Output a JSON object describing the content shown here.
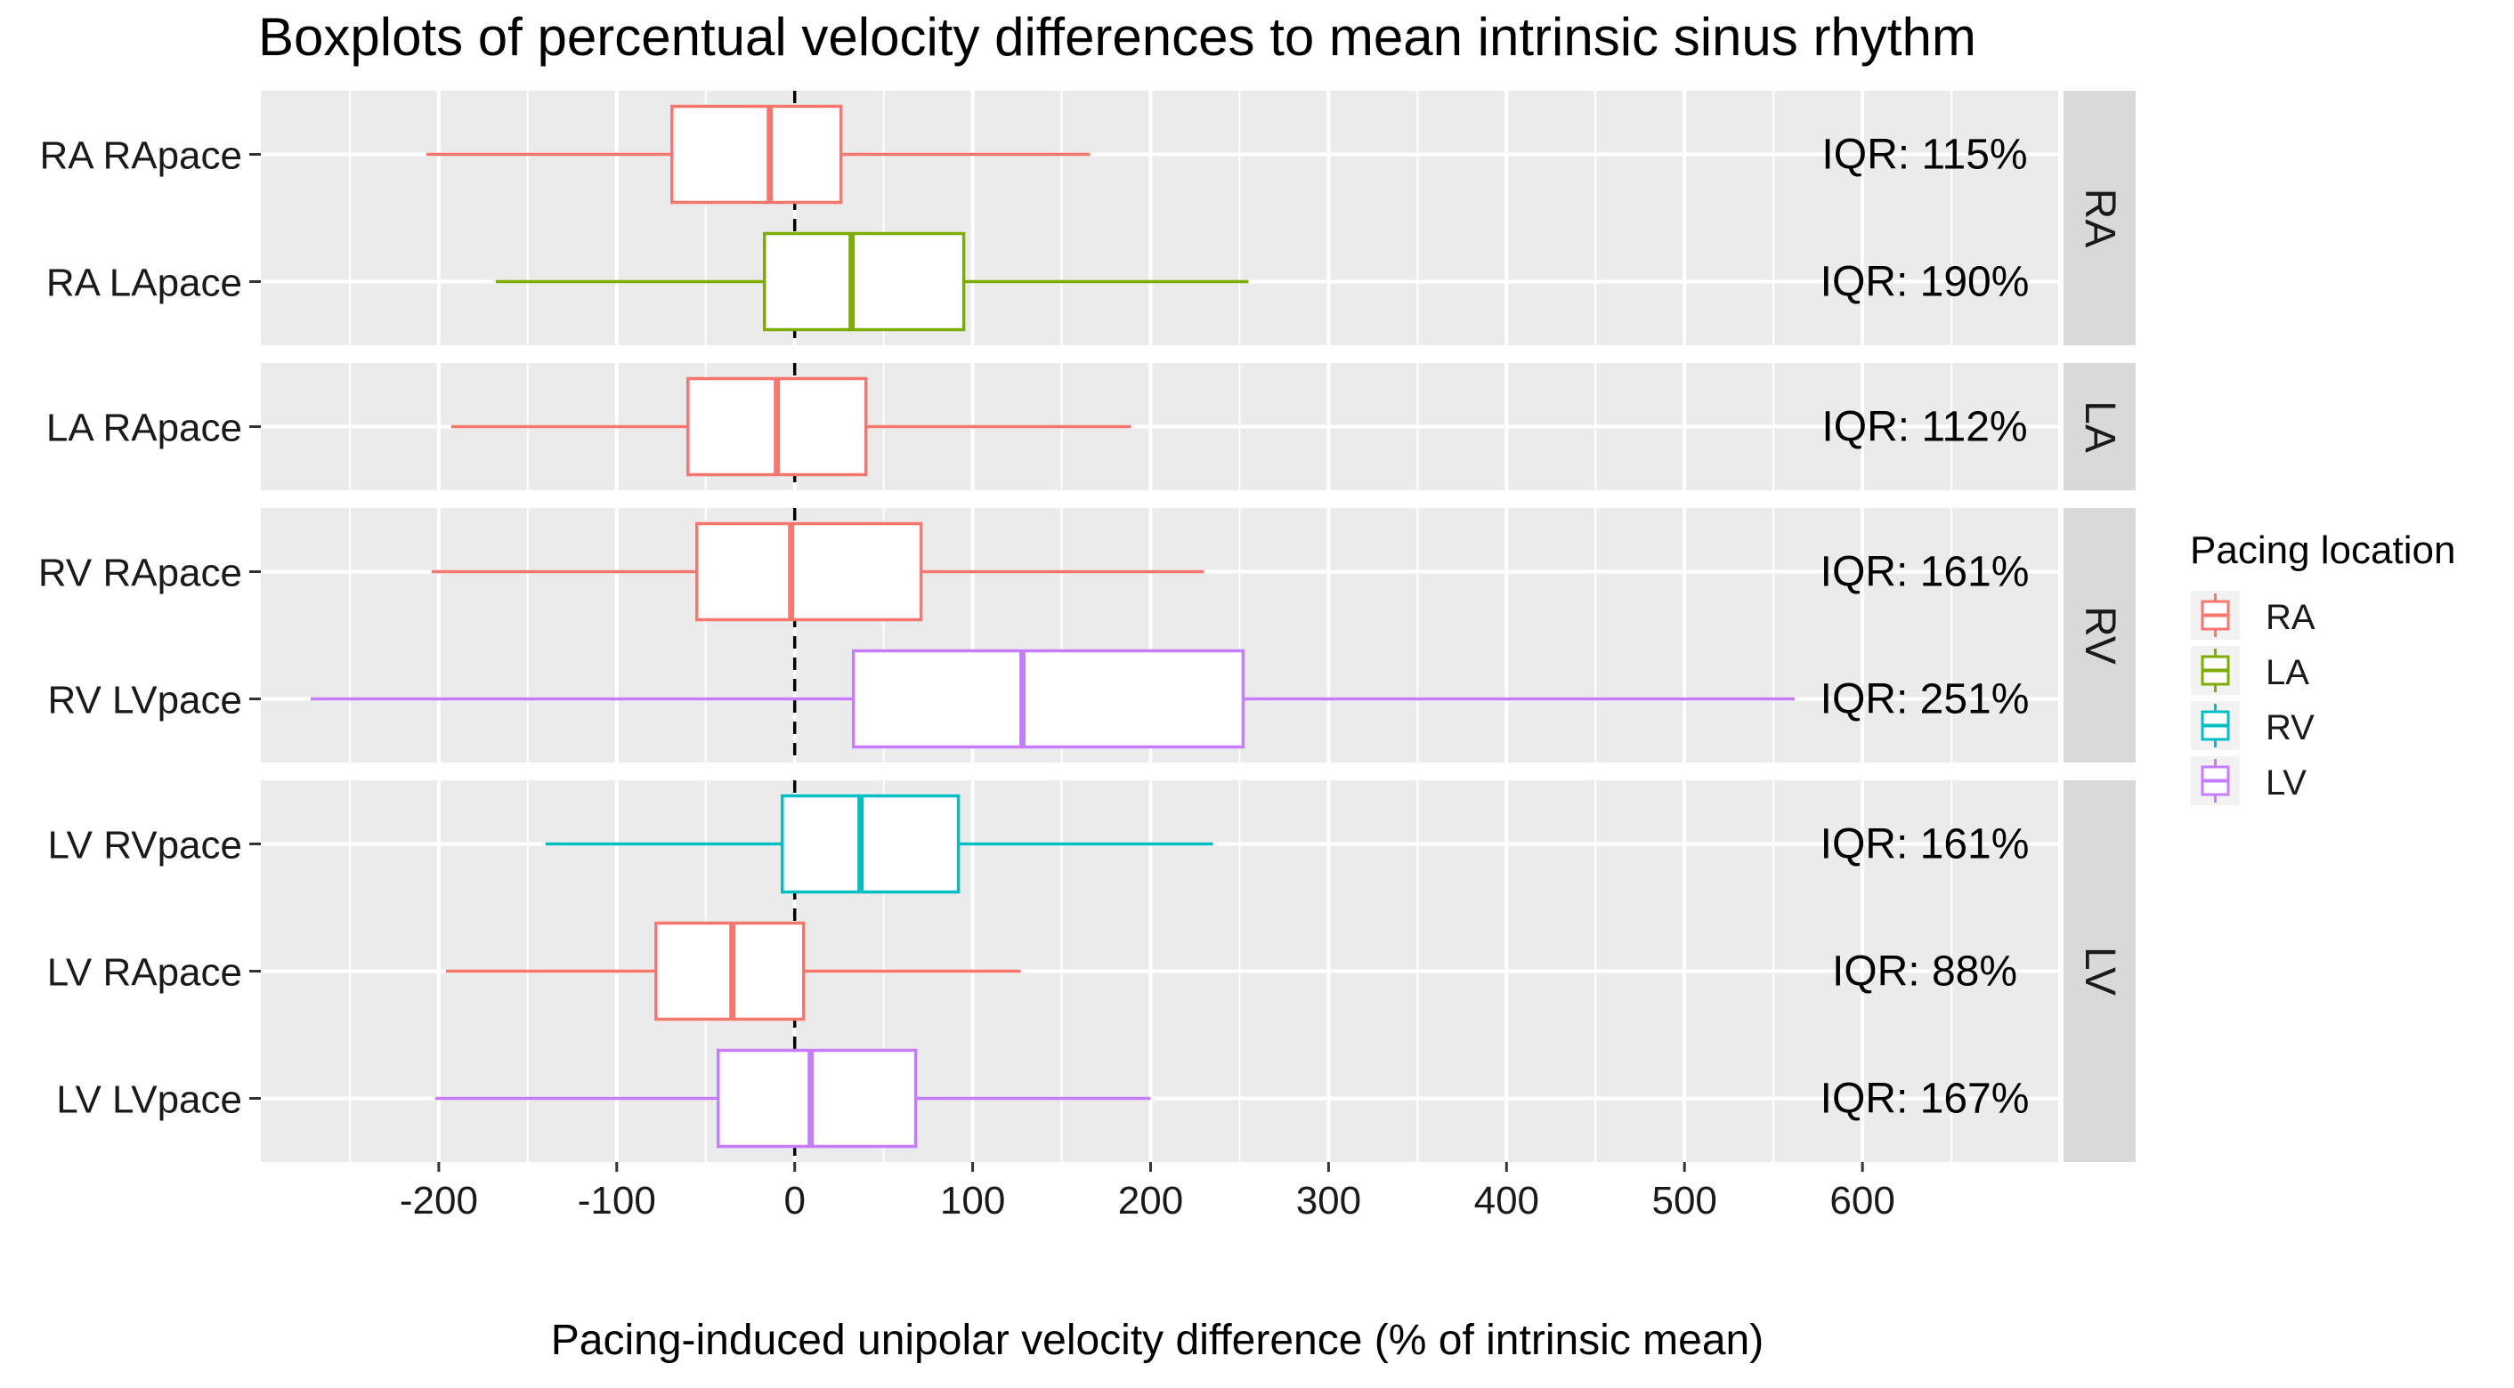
{
  "chart_data": {
    "type": "boxplot",
    "title": "Boxplots of percentual velocity differences to mean intrinsic sinus rhythm",
    "xlabel": "Pacing-induced unipolar velocity difference (% of intrinsic mean)",
    "ylabel": "",
    "xlim": [
      -300,
      710
    ],
    "x_ticks": [
      -200,
      -100,
      0,
      100,
      200,
      300,
      400,
      500,
      600
    ],
    "x_tick_labels": [
      "-200",
      "-100",
      "0",
      "100",
      "200",
      "300",
      "400",
      "500",
      "600"
    ],
    "reference_line": {
      "value": 0,
      "style": "dashed"
    },
    "grid": true,
    "legend": {
      "title": "Pacing location",
      "position": "right",
      "entries": [
        {
          "label": "RA",
          "color": "#F8766D"
        },
        {
          "label": "LA",
          "color": "#7CAE00"
        },
        {
          "label": "RV",
          "color": "#00BFC4"
        },
        {
          "label": "LV",
          "color": "#C77CFF"
        }
      ]
    },
    "facets": [
      {
        "strip": "RA",
        "rows": [
          {
            "label": "RA RApace",
            "pacing": "RA",
            "whisker_low": -207,
            "q1": -69,
            "median": -14,
            "q3": 26,
            "whisker_high": 166,
            "iqr_label": "IQR: 115%"
          },
          {
            "label": "RA LApace",
            "pacing": "LA",
            "whisker_low": -168,
            "q1": -17,
            "median": 32,
            "q3": 95,
            "whisker_high": 255,
            "iqr_label": "IQR: 190%"
          }
        ]
      },
      {
        "strip": "LA",
        "rows": [
          {
            "label": "LA RApace",
            "pacing": "RA",
            "whisker_low": -193,
            "q1": -60,
            "median": -10,
            "q3": 40,
            "whisker_high": 189,
            "iqr_label": "IQR: 112%"
          }
        ]
      },
      {
        "strip": "RV",
        "rows": [
          {
            "label": "RV RApace",
            "pacing": "RA",
            "whisker_low": -204,
            "q1": -55,
            "median": -2,
            "q3": 71,
            "whisker_high": 230,
            "iqr_label": "IQR: 161%"
          },
          {
            "label": "RV LVpace",
            "pacing": "LV",
            "whisker_low": -272,
            "q1": 33,
            "median": 128,
            "q3": 252,
            "whisker_high": 562,
            "iqr_label": "IQR: 251%"
          }
        ]
      },
      {
        "strip": "LV",
        "rows": [
          {
            "label": "LV RVpace",
            "pacing": "RV",
            "whisker_low": -140,
            "q1": -7,
            "median": 37,
            "q3": 92,
            "whisker_high": 235,
            "iqr_label": "IQR: 161%"
          },
          {
            "label": "LV RApace",
            "pacing": "RA",
            "whisker_low": -196,
            "q1": -78,
            "median": -35,
            "q3": 5,
            "whisker_high": 127,
            "iqr_label": "IQR: 88%"
          },
          {
            "label": "LV LVpace",
            "pacing": "LV",
            "whisker_low": -202,
            "q1": -43,
            "median": 9,
            "q3": 68,
            "whisker_high": 200,
            "iqr_label": "IQR: 167%"
          }
        ]
      }
    ]
  }
}
